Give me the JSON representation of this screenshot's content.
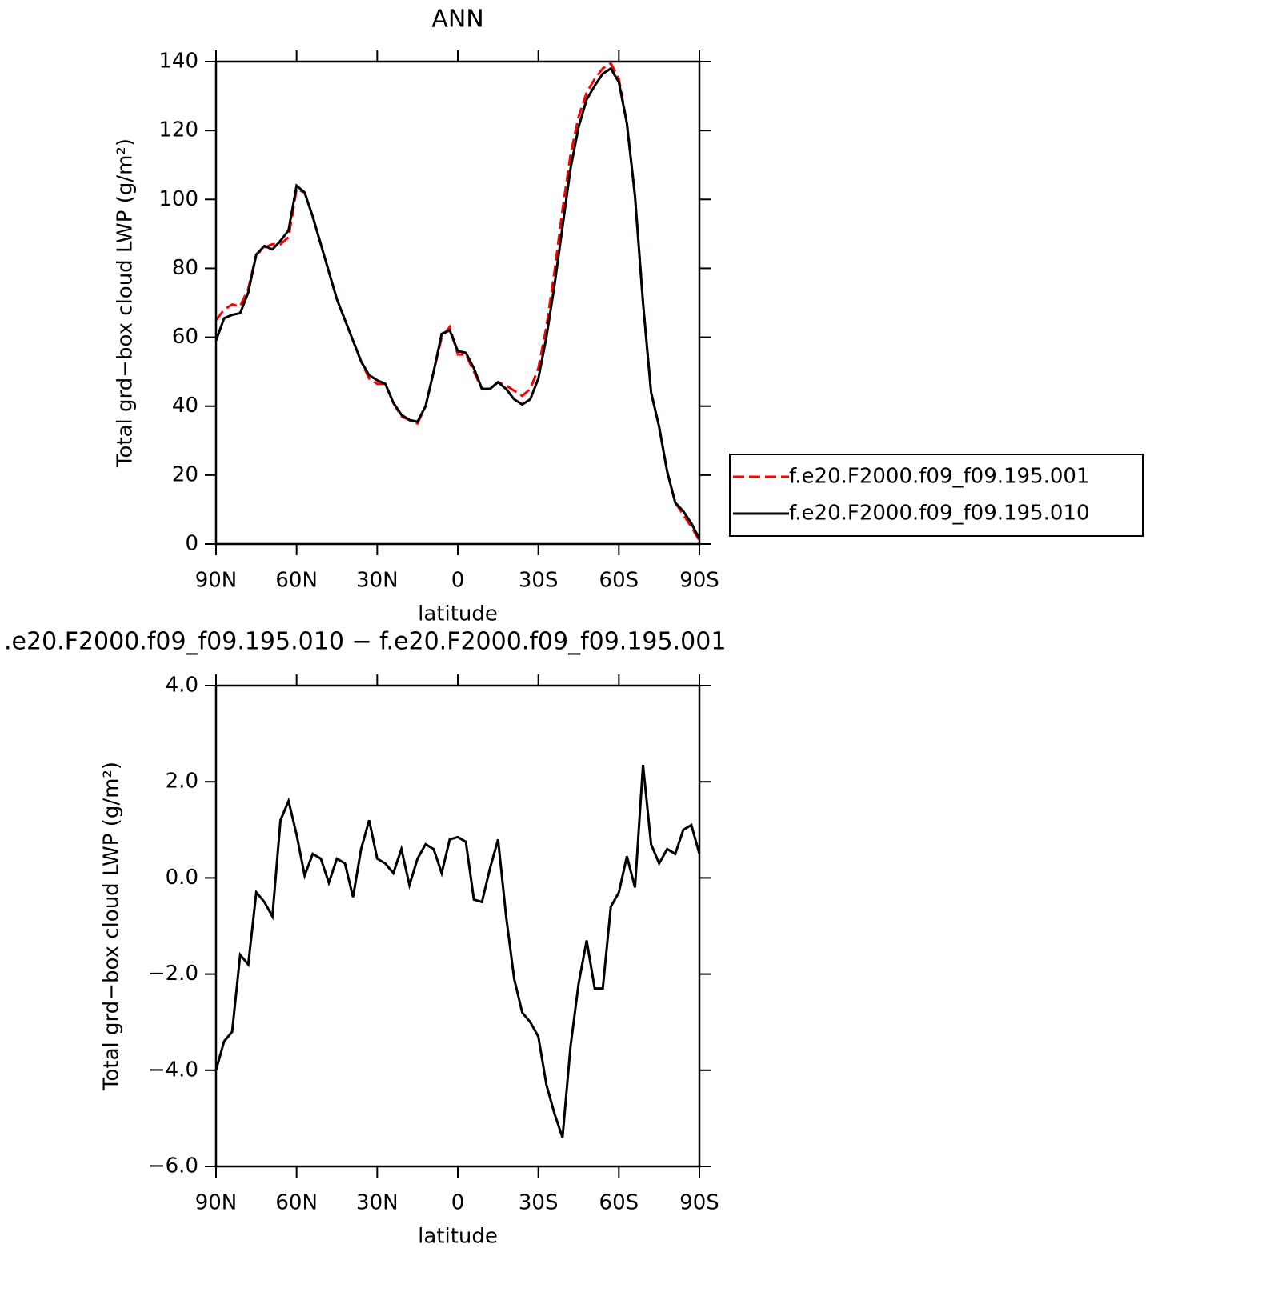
{
  "chart_data": [
    {
      "type": "line",
      "title": "ANN",
      "xlabel": "latitude",
      "ylabel": "Total grd−box cloud LWP (g/m²)",
      "x": [
        90,
        87,
        84,
        81,
        78,
        75,
        72,
        69,
        66,
        63,
        60,
        57,
        54,
        51,
        48,
        45,
        42,
        39,
        36,
        33,
        30,
        27,
        24,
        21,
        18,
        15,
        12,
        9,
        6,
        3,
        0,
        -3,
        -6,
        -9,
        -12,
        -15,
        -18,
        -21,
        -24,
        -27,
        -30,
        -33,
        -36,
        -39,
        -42,
        -45,
        -48,
        -51,
        -54,
        -57,
        -60,
        -63,
        -66,
        -69,
        -72,
        -75,
        -78,
        -81,
        -84,
        -87,
        -90
      ],
      "series": [
        {
          "name": "f.e20.F2000.f09_f09.195.001",
          "color": "#ff0000",
          "linestyle": "dashed",
          "values": [
            65,
            68,
            69.5,
            69,
            74,
            84,
            86,
            87,
            87,
            89,
            103,
            102,
            95,
            87,
            79,
            71,
            65,
            59,
            53,
            48,
            46.5,
            46.5,
            41,
            37,
            36,
            35,
            40,
            50,
            60,
            63,
            55,
            55,
            50,
            45,
            45,
            47,
            46,
            44.5,
            43,
            45,
            51,
            63,
            79,
            97,
            113,
            124,
            131,
            135,
            138,
            139.5,
            135,
            122,
            101,
            70,
            44,
            34,
            21,
            12,
            8.5,
            5,
            1
          ]
        },
        {
          "name": "f.e20.F2000.f09_f09.195.010",
          "color": "#000000",
          "linestyle": "solid",
          "values": [
            59,
            65.5,
            66.5,
            67,
            73,
            84,
            86.5,
            85.5,
            88,
            91,
            104,
            102,
            95,
            87,
            79,
            71,
            65,
            59,
            53,
            49,
            47.5,
            46.5,
            41,
            37.5,
            36,
            35.5,
            40,
            50,
            61,
            62,
            56,
            55.5,
            51,
            45,
            45,
            47,
            45,
            42,
            40.5,
            42,
            48,
            60,
            75,
            92,
            109,
            121,
            129,
            133,
            136.5,
            138,
            134,
            122,
            101,
            70,
            44,
            34,
            21,
            12,
            9.5,
            6,
            1.5
          ]
        }
      ],
      "xlim": [
        90,
        -90
      ],
      "xticks": [
        {
          "value": 90,
          "label": "90N"
        },
        {
          "value": 60,
          "label": "60N"
        },
        {
          "value": 30,
          "label": "30N"
        },
        0,
        {
          "value": -30,
          "label": "30S"
        },
        {
          "value": -60,
          "label": "60S"
        },
        {
          "value": -90,
          "label": "90S"
        }
      ],
      "ylim": [
        0,
        140
      ],
      "yticks": [
        0,
        20,
        40,
        60,
        80,
        100,
        120,
        140
      ],
      "legend": "right"
    },
    {
      "type": "line",
      "title": ".e20.F2000.f09_f09.195.010 − f.e20.F2000.f09_f09.195.001",
      "xlabel": "latitude",
      "ylabel": "Total grd−box cloud LWP (g/m²)",
      "x": [
        90,
        87,
        84,
        81,
        78,
        75,
        72,
        69,
        66,
        63,
        60,
        57,
        54,
        51,
        48,
        45,
        42,
        39,
        36,
        33,
        30,
        27,
        24,
        21,
        18,
        15,
        12,
        9,
        6,
        3,
        0,
        -3,
        -6,
        -9,
        -12,
        -15,
        -18,
        -21,
        -24,
        -27,
        -30,
        -33,
        -36,
        -39,
        -42,
        -45,
        -48,
        -51,
        -54,
        -57,
        -60,
        -63,
        -66,
        -69,
        -72,
        -75,
        -78,
        -81,
        -84,
        -87,
        -90
      ],
      "series": [
        {
          "color": "#000000",
          "linestyle": "solid",
          "values": [
            -4.0,
            -3.4,
            -3.2,
            -1.6,
            -1.8,
            -0.3,
            -0.5,
            -0.8,
            1.2,
            1.6,
            0.9,
            0.05,
            0.5,
            0.4,
            -0.1,
            0.4,
            0.3,
            -0.4,
            0.6,
            1.2,
            0.4,
            0.3,
            0.1,
            0.6,
            -0.15,
            0.4,
            0.7,
            0.6,
            0.1,
            0.8,
            0.85,
            0.75,
            -0.45,
            -0.5,
            0.2,
            0.8,
            -0.8,
            -2.1,
            -2.8,
            -3.0,
            -3.3,
            -4.3,
            -4.9,
            -5.4,
            -3.5,
            -2.2,
            -1.3,
            -2.3,
            -2.3,
            -0.6,
            -0.3,
            0.45,
            -0.2,
            2.35,
            0.7,
            0.3,
            0.6,
            0.5,
            1.0,
            1.1,
            0.5
          ]
        }
      ],
      "xlim": [
        90,
        -90
      ],
      "xticks": [
        {
          "value": 90,
          "label": "90N"
        },
        {
          "value": 60,
          "label": "60N"
        },
        {
          "value": 30,
          "label": "30N"
        },
        0,
        {
          "value": -30,
          "label": "30S"
        },
        {
          "value": -60,
          "label": "60S"
        },
        {
          "value": -90,
          "label": "90S"
        }
      ],
      "ylim": [
        -6,
        4
      ],
      "yticks": [
        {
          "value": -6,
          "label": "−6.0"
        },
        {
          "value": -4,
          "label": "−4.0"
        },
        {
          "value": -2,
          "label": "−2.0"
        },
        {
          "value": 0,
          "label": "0.0"
        },
        {
          "value": 2,
          "label": "2.0"
        },
        {
          "value": 4,
          "label": "4.0"
        }
      ]
    }
  ]
}
